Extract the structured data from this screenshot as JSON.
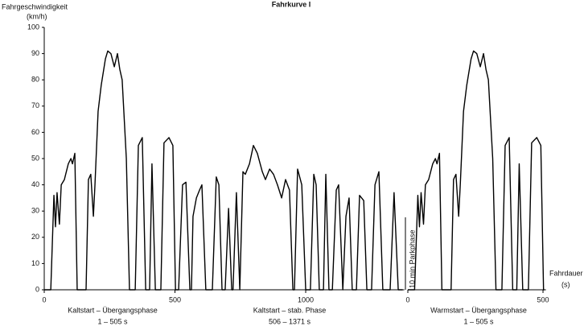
{
  "chart_data": [
    {
      "type": "line",
      "title": "Fahrkurve I",
      "ylabel_lines": [
        "Fahrgeschwindigkeit",
        "(km/h)"
      ],
      "annotations": [
        [
          "Kaltstart – Übergangsphase",
          "1 – 505 s"
        ],
        [
          "Kaltstart – stab. Phase",
          "506 – 1371 s"
        ]
      ],
      "color": "#000000",
      "x": [
        0,
        25,
        37,
        43,
        49,
        58,
        65,
        77,
        92,
        102,
        108,
        117,
        126,
        160,
        169,
        178,
        188,
        194,
        206,
        218,
        234,
        243,
        255,
        268,
        280,
        289,
        298,
        314,
        326,
        348,
        360,
        375,
        388,
        403,
        412,
        425,
        446,
        458,
        477,
        492,
        502,
        505,
        514,
        529,
        542,
        557,
        563,
        569,
        582,
        594,
        603,
        618,
        643,
        658,
        668,
        680,
        692,
        705,
        717,
        722,
        735,
        748,
        760,
        769,
        785,
        800,
        815,
        834,
        846,
        862,
        877,
        892,
        908,
        923,
        938,
        951,
        957,
        969,
        985,
        1000,
        1018,
        1031,
        1040,
        1052,
        1068,
        1077,
        1089,
        1102,
        1117,
        1126,
        1142,
        1154,
        1166,
        1178,
        1194,
        1206,
        1222,
        1234,
        1252,
        1265,
        1280,
        1295,
        1323,
        1338,
        1354,
        1371
      ],
      "values": [
        0,
        0,
        36,
        24,
        37,
        25,
        40,
        42,
        48,
        50,
        48,
        52,
        0,
        0,
        42,
        44,
        28,
        40,
        68,
        78,
        88,
        91,
        90,
        85,
        90,
        84,
        80,
        50,
        0,
        0,
        55,
        58,
        0,
        0,
        48,
        0,
        0,
        56,
        58,
        55,
        0,
        0,
        0,
        40,
        41,
        0,
        0,
        28,
        35,
        38,
        40,
        0,
        0,
        43,
        40,
        0,
        0,
        31,
        0,
        0,
        37,
        0,
        45,
        44,
        48,
        55,
        52,
        45,
        42,
        46,
        44,
        40,
        35,
        42,
        38,
        0,
        0,
        46,
        40,
        0,
        0,
        44,
        40,
        0,
        0,
        44,
        0,
        0,
        38,
        40,
        0,
        28,
        35,
        0,
        0,
        36,
        34,
        0,
        0,
        40,
        45,
        0,
        0,
        37,
        0,
        0
      ],
      "xlim": [
        0,
        1371
      ],
      "xticks": [
        0,
        500,
        1000
      ],
      "ylim": [
        0,
        100
      ],
      "yticks": [
        0,
        10,
        20,
        30,
        40,
        50,
        60,
        70,
        80,
        90,
        100
      ]
    },
    {
      "type": "line",
      "break_label": "10 min Parkphase",
      "xlabel_lines": [
        "Fahrdauer",
        "(s)"
      ],
      "annotations": [
        [
          "Warmstart – Übergangsphase",
          "1 – 505 s"
        ]
      ],
      "color": "#000000",
      "x": [
        0,
        25,
        37,
        43,
        49,
        58,
        65,
        77,
        92,
        102,
        108,
        117,
        126,
        160,
        169,
        178,
        188,
        194,
        206,
        218,
        234,
        243,
        255,
        268,
        280,
        289,
        298,
        314,
        326,
        348,
        360,
        375,
        388,
        403,
        412,
        425,
        446,
        458,
        477,
        492,
        502,
        505
      ],
      "values": [
        0,
        0,
        36,
        24,
        37,
        25,
        40,
        42,
        48,
        50,
        48,
        52,
        0,
        0,
        42,
        44,
        28,
        40,
        68,
        78,
        88,
        91,
        90,
        85,
        90,
        84,
        80,
        50,
        0,
        0,
        55,
        58,
        0,
        0,
        48,
        0,
        0,
        56,
        58,
        55,
        0,
        0
      ],
      "xlim": [
        0,
        505
      ],
      "xticks": [
        0,
        500
      ],
      "ylim": [
        0,
        100
      ]
    }
  ]
}
